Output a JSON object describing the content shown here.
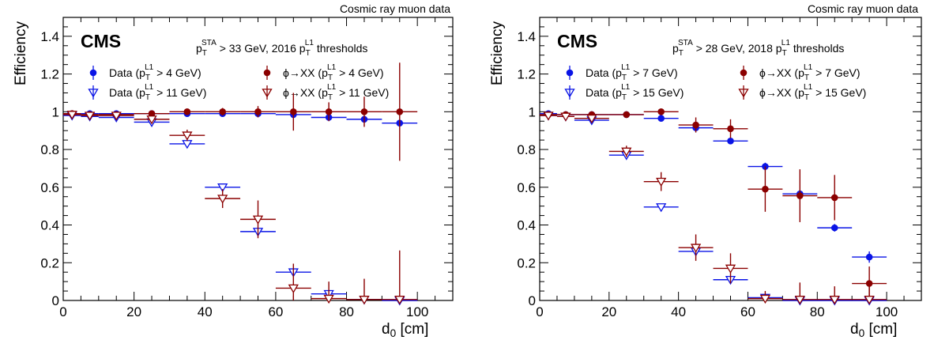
{
  "colors": {
    "data": "#0a14e6",
    "signal": "#8b0000",
    "axis": "#000000"
  },
  "chart_data": [
    {
      "type": "scatter",
      "title": "",
      "top_right_label": "Cosmic ray muon data",
      "experiment_label": "CMS",
      "selection": {
        "pre": "p",
        "sub1": "T",
        "sup1": "STA",
        "mid": " > 33 GeV, 2016 p",
        "sub2": "T",
        "sup2": "L1",
        "post": " thresholds"
      },
      "ylabel": "Efficiency",
      "xlabel": {
        "main": "d",
        "sub": "0",
        "unit": " [cm]"
      },
      "xlim": [
        0,
        110
      ],
      "ylim": [
        0,
        1.5
      ],
      "grid": false,
      "legend_position": "top-center",
      "x_ticks": [
        "0",
        "20",
        "40",
        "60",
        "80",
        "100"
      ],
      "y_ticks": [
        "0",
        "0.2",
        "0.4",
        "0.6",
        "0.8",
        "1",
        "1.2",
        "1.4"
      ],
      "series": [
        {
          "name": "Data (pT^L1 > 4 GeV)",
          "legend": {
            "pre": "Data  (p",
            "sub": "T",
            "sup": "L1",
            "post": " > 4 GeV)"
          },
          "marker": "filled-circle",
          "color": "#0a14e6",
          "points": [
            {
              "x": 2.5,
              "xerr": 2.5,
              "y": 0.99,
              "yerr": 0.008
            },
            {
              "x": 7.5,
              "xerr": 2.5,
              "y": 0.99,
              "yerr": 0.008
            },
            {
              "x": 15,
              "xerr": 5,
              "y": 0.99,
              "yerr": 0.008
            },
            {
              "x": 25,
              "xerr": 5,
              "y": 0.99,
              "yerr": 0.008
            },
            {
              "x": 35,
              "xerr": 5,
              "y": 0.99,
              "yerr": 0.008
            },
            {
              "x": 45,
              "xerr": 5,
              "y": 0.99,
              "yerr": 0.01
            },
            {
              "x": 55,
              "xerr": 5,
              "y": 0.99,
              "yerr": 0.01
            },
            {
              "x": 65,
              "xerr": 5,
              "y": 0.985,
              "yerr": 0.01
            },
            {
              "x": 75,
              "xerr": 5,
              "y": 0.97,
              "yerr": 0.012
            },
            {
              "x": 85,
              "xerr": 5,
              "y": 0.96,
              "yerr": 0.015
            },
            {
              "x": 95,
              "xerr": 5,
              "y": 0.94,
              "yerr": 0.02
            }
          ]
        },
        {
          "name": "Data (pT^L1 > 11 GeV)",
          "legend": {
            "pre": "Data  (p",
            "sub": "T",
            "sup": "L1",
            "post": " > 11 GeV)"
          },
          "marker": "open-triangle-down",
          "color": "#0a14e6",
          "points": [
            {
              "x": 2.5,
              "xerr": 2.5,
              "y": 0.98,
              "yerr": 0.01
            },
            {
              "x": 7.5,
              "xerr": 2.5,
              "y": 0.975,
              "yerr": 0.01
            },
            {
              "x": 15,
              "xerr": 5,
              "y": 0.97,
              "yerr": 0.01
            },
            {
              "x": 25,
              "xerr": 5,
              "y": 0.945,
              "yerr": 0.01
            },
            {
              "x": 35,
              "xerr": 5,
              "y": 0.83,
              "yerr": 0.015
            },
            {
              "x": 45,
              "xerr": 5,
              "y": 0.6,
              "yerr": 0.02
            },
            {
              "x": 55,
              "xerr": 5,
              "y": 0.365,
              "yerr": 0.02
            },
            {
              "x": 65,
              "xerr": 5,
              "y": 0.15,
              "yerr": 0.015
            },
            {
              "x": 75,
              "xerr": 5,
              "y": 0.035,
              "yerr": 0.01
            },
            {
              "x": 85,
              "xerr": 5,
              "y": 0.005,
              "yerr": 0.005
            },
            {
              "x": 95,
              "xerr": 5,
              "y": 0.0,
              "yerr": 0.003
            }
          ]
        },
        {
          "name": "φ→XX (pT^L1 > 4 GeV)",
          "legend": {
            "pre": "ϕ→XX (p",
            "sub": "T",
            "sup": "L1",
            "post": " > 4 GeV)"
          },
          "marker": "filled-circle",
          "color": "#8b0000",
          "points": [
            {
              "x": 2.5,
              "xerr": 2.5,
              "y": 0.99,
              "yerr": 0.008
            },
            {
              "x": 7.5,
              "xerr": 2.5,
              "y": 0.985,
              "yerr": 0.01
            },
            {
              "x": 15,
              "xerr": 5,
              "y": 0.985,
              "yerr": 0.01
            },
            {
              "x": 25,
              "xerr": 5,
              "y": 0.99,
              "yerr": 0.01
            },
            {
              "x": 35,
              "xerr": 5,
              "y": 1.0,
              "yerr": 0.015
            },
            {
              "x": 45,
              "xerr": 5,
              "y": 1.0,
              "yerr": 0.02
            },
            {
              "x": 55,
              "xerr": 5,
              "y": 1.0,
              "yerr": 0.03
            },
            {
              "x": 65,
              "xerr": 5,
              "y": 1.0,
              "yerr": 0.1
            },
            {
              "x": 75,
              "xerr": 5,
              "y": 1.0,
              "yerr": 0.05
            },
            {
              "x": 85,
              "xerr": 5,
              "y": 1.0,
              "yerr": 0.08
            },
            {
              "x": 95,
              "xerr": 5,
              "y": 1.0,
              "yerr": 0.26
            }
          ]
        },
        {
          "name": "φ→XX (pT^L1 > 11 GeV)",
          "legend": {
            "pre": "ϕ→XX (p",
            "sub": "T",
            "sup": "L1",
            "post": " > 11 GeV)"
          },
          "marker": "open-triangle-down",
          "color": "#8b0000",
          "points": [
            {
              "x": 2.5,
              "xerr": 2.5,
              "y": 0.985,
              "yerr": 0.01
            },
            {
              "x": 7.5,
              "xerr": 2.5,
              "y": 0.98,
              "yerr": 0.01
            },
            {
              "x": 15,
              "xerr": 5,
              "y": 0.98,
              "yerr": 0.01
            },
            {
              "x": 25,
              "xerr": 5,
              "y": 0.96,
              "yerr": 0.015
            },
            {
              "x": 35,
              "xerr": 5,
              "y": 0.875,
              "yerr": 0.03
            },
            {
              "x": 45,
              "xerr": 5,
              "y": 0.54,
              "yerr": 0.05
            },
            {
              "x": 55,
              "xerr": 5,
              "y": 0.43,
              "yerr": 0.1
            },
            {
              "x": 65,
              "xerr": 5,
              "y": 0.065,
              "yerr": 0.13
            },
            {
              "x": 75,
              "xerr": 5,
              "y": 0.01,
              "yerr": 0.09
            },
            {
              "x": 85,
              "xerr": 5,
              "y": 0.005,
              "yerr": 0.11
            },
            {
              "x": 95,
              "xerr": 5,
              "y": 0.005,
              "yerr": 0.26
            }
          ]
        }
      ]
    },
    {
      "type": "scatter",
      "title": "",
      "top_right_label": "Cosmic ray muon data",
      "experiment_label": "CMS",
      "selection": {
        "pre": "p",
        "sub1": "T",
        "sup1": "STA",
        "mid": " > 28 GeV, 2018 p",
        "sub2": "T",
        "sup2": "L1",
        "post": " thresholds"
      },
      "ylabel": "Efficiency",
      "xlabel": {
        "main": "d",
        "sub": "0",
        "unit": " [cm]"
      },
      "xlim": [
        0,
        110
      ],
      "ylim": [
        0,
        1.5
      ],
      "grid": false,
      "legend_position": "top-center",
      "x_ticks": [
        "0",
        "20",
        "40",
        "60",
        "80",
        "100"
      ],
      "y_ticks": [
        "0",
        "0.2",
        "0.4",
        "0.6",
        "0.8",
        "1",
        "1.2",
        "1.4"
      ],
      "series": [
        {
          "name": "Data (pT^L1 > 7 GeV)",
          "legend": {
            "pre": "Data  (p",
            "sub": "T",
            "sup": "L1",
            "post": " > 7 GeV)"
          },
          "marker": "filled-circle",
          "color": "#0a14e6",
          "points": [
            {
              "x": 2.5,
              "xerr": 2.5,
              "y": 0.99,
              "yerr": 0.008
            },
            {
              "x": 7.5,
              "xerr": 2.5,
              "y": 0.985,
              "yerr": 0.008
            },
            {
              "x": 15,
              "xerr": 5,
              "y": 0.985,
              "yerr": 0.008
            },
            {
              "x": 25,
              "xerr": 5,
              "y": 0.985,
              "yerr": 0.008
            },
            {
              "x": 35,
              "xerr": 5,
              "y": 0.965,
              "yerr": 0.01
            },
            {
              "x": 45,
              "xerr": 5,
              "y": 0.915,
              "yerr": 0.012
            },
            {
              "x": 55,
              "xerr": 5,
              "y": 0.845,
              "yerr": 0.015
            },
            {
              "x": 65,
              "xerr": 5,
              "y": 0.71,
              "yerr": 0.02
            },
            {
              "x": 75,
              "xerr": 5,
              "y": 0.565,
              "yerr": 0.02
            },
            {
              "x": 85,
              "xerr": 5,
              "y": 0.385,
              "yerr": 0.02
            },
            {
              "x": 95,
              "xerr": 5,
              "y": 0.23,
              "yerr": 0.03
            }
          ]
        },
        {
          "name": "Data (pT^L1 > 15 GeV)",
          "legend": {
            "pre": "Data  (p",
            "sub": "T",
            "sup": "L1",
            "post": " > 15 GeV)"
          },
          "marker": "open-triangle-down",
          "color": "#0a14e6",
          "points": [
            {
              "x": 2.5,
              "xerr": 2.5,
              "y": 0.98,
              "yerr": 0.01
            },
            {
              "x": 7.5,
              "xerr": 2.5,
              "y": 0.975,
              "yerr": 0.01
            },
            {
              "x": 15,
              "xerr": 5,
              "y": 0.955,
              "yerr": 0.01
            },
            {
              "x": 25,
              "xerr": 5,
              "y": 0.77,
              "yerr": 0.015
            },
            {
              "x": 35,
              "xerr": 5,
              "y": 0.495,
              "yerr": 0.015
            },
            {
              "x": 45,
              "xerr": 5,
              "y": 0.26,
              "yerr": 0.015
            },
            {
              "x": 55,
              "xerr": 5,
              "y": 0.11,
              "yerr": 0.012
            },
            {
              "x": 65,
              "xerr": 5,
              "y": 0.015,
              "yerr": 0.008
            },
            {
              "x": 75,
              "xerr": 5,
              "y": 0.0,
              "yerr": 0.005
            },
            {
              "x": 85,
              "xerr": 5,
              "y": 0.0,
              "yerr": 0.005
            },
            {
              "x": 95,
              "xerr": 5,
              "y": 0.0,
              "yerr": 0.005
            }
          ]
        },
        {
          "name": "φ→XX (pT^L1 > 7 GeV)",
          "legend": {
            "pre": "ϕ→XX (p",
            "sub": "T",
            "sup": "L1",
            "post": " > 7 GeV)"
          },
          "marker": "filled-circle",
          "color": "#8b0000",
          "points": [
            {
              "x": 2.5,
              "xerr": 2.5,
              "y": 0.985,
              "yerr": 0.01
            },
            {
              "x": 7.5,
              "xerr": 2.5,
              "y": 0.985,
              "yerr": 0.01
            },
            {
              "x": 15,
              "xerr": 5,
              "y": 0.985,
              "yerr": 0.01
            },
            {
              "x": 25,
              "xerr": 5,
              "y": 0.985,
              "yerr": 0.01
            },
            {
              "x": 35,
              "xerr": 5,
              "y": 1.0,
              "yerr": 0.015
            },
            {
              "x": 45,
              "xerr": 5,
              "y": 0.93,
              "yerr": 0.04
            },
            {
              "x": 55,
              "xerr": 5,
              "y": 0.91,
              "yerr": 0.05
            },
            {
              "x": 65,
              "xerr": 5,
              "y": 0.59,
              "yerr": 0.12
            },
            {
              "x": 75,
              "xerr": 5,
              "y": 0.555,
              "yerr": 0.14
            },
            {
              "x": 85,
              "xerr": 5,
              "y": 0.545,
              "yerr": 0.12
            },
            {
              "x": 95,
              "xerr": 5,
              "y": 0.09,
              "yerr": 0.09
            }
          ]
        },
        {
          "name": "φ→XX (pT^L1 > 15 GeV)",
          "legend": {
            "pre": "ϕ→XX (p",
            "sub": "T",
            "sup": "L1",
            "post": " > 15 GeV)"
          },
          "marker": "open-triangle-down",
          "color": "#8b0000",
          "points": [
            {
              "x": 2.5,
              "xerr": 2.5,
              "y": 0.98,
              "yerr": 0.01
            },
            {
              "x": 7.5,
              "xerr": 2.5,
              "y": 0.975,
              "yerr": 0.01
            },
            {
              "x": 15,
              "xerr": 5,
              "y": 0.965,
              "yerr": 0.01
            },
            {
              "x": 25,
              "xerr": 5,
              "y": 0.79,
              "yerr": 0.03
            },
            {
              "x": 35,
              "xerr": 5,
              "y": 0.63,
              "yerr": 0.05
            },
            {
              "x": 45,
              "xerr": 5,
              "y": 0.28,
              "yerr": 0.07
            },
            {
              "x": 55,
              "xerr": 5,
              "y": 0.17,
              "yerr": 0.08
            },
            {
              "x": 65,
              "xerr": 5,
              "y": 0.01,
              "yerr": 0.04
            },
            {
              "x": 75,
              "xerr": 5,
              "y": 0.005,
              "yerr": 0.09
            },
            {
              "x": 85,
              "xerr": 5,
              "y": 0.005,
              "yerr": 0.07
            },
            {
              "x": 95,
              "xerr": 5,
              "y": 0.005,
              "yerr": 0.09
            }
          ]
        }
      ]
    }
  ]
}
